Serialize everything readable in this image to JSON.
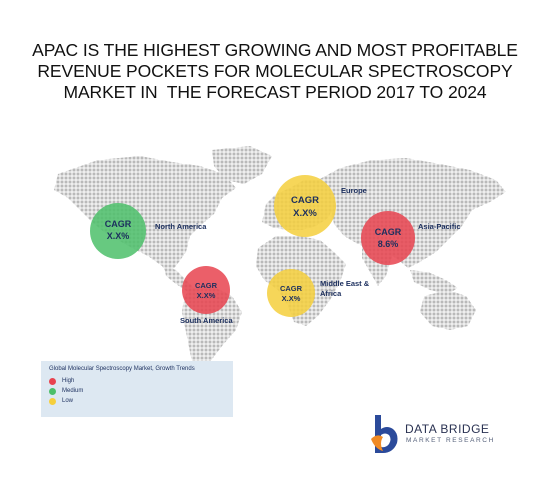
{
  "title_lines": [
    "APAC IS THE HIGHEST GROWING AND MOST PROFITABLE",
    "REVENUE POCKETS FOR MOLECULAR SPECTROSCOPY",
    "MARKET IN  THE FORECAST PERIOD 2017 TO 2024"
  ],
  "regions": {
    "north_america": {
      "cagr_label": "CAGR",
      "cagr_value": "X.X%",
      "name": "North America",
      "trend": "Medium",
      "color": "#4cbf6a"
    },
    "south_america": {
      "cagr_label": "CAGR",
      "cagr_value": "X.X%",
      "name": "South America",
      "trend": "High",
      "color": "#e8434f"
    },
    "europe": {
      "cagr_label": "CAGR",
      "cagr_value": "X.X%",
      "name": "Europe",
      "trend": "Low",
      "color": "#f5cf3c"
    },
    "middle_east_africa": {
      "cagr_label": "CAGR",
      "cagr_value": "X.X%",
      "name_line1": "Middle East &",
      "name_line2": "Africa",
      "trend": "Low",
      "color": "#f5cf3c"
    },
    "asia_pacific": {
      "cagr_label": "CAGR",
      "cagr_value": "8.6%",
      "name": "Asia-Pacific",
      "trend": "High",
      "color": "#e8434f"
    }
  },
  "legend": {
    "title": "Global Molecular Spectroscopy Market, Growth Trends",
    "items": [
      {
        "label": "High",
        "color": "#e8434f"
      },
      {
        "label": "Medium",
        "color": "#4cbf6a"
      },
      {
        "label": "Low",
        "color": "#f5cf3c"
      }
    ]
  },
  "logo": {
    "line1": "DATA BRIDGE",
    "line2": "MARKET RESEARCH",
    "icon": "data-bridge-logo-icon",
    "colors": {
      "blue": "#2b4a9a",
      "orange": "#f08a24"
    }
  },
  "map_color": "#b9b9b9"
}
